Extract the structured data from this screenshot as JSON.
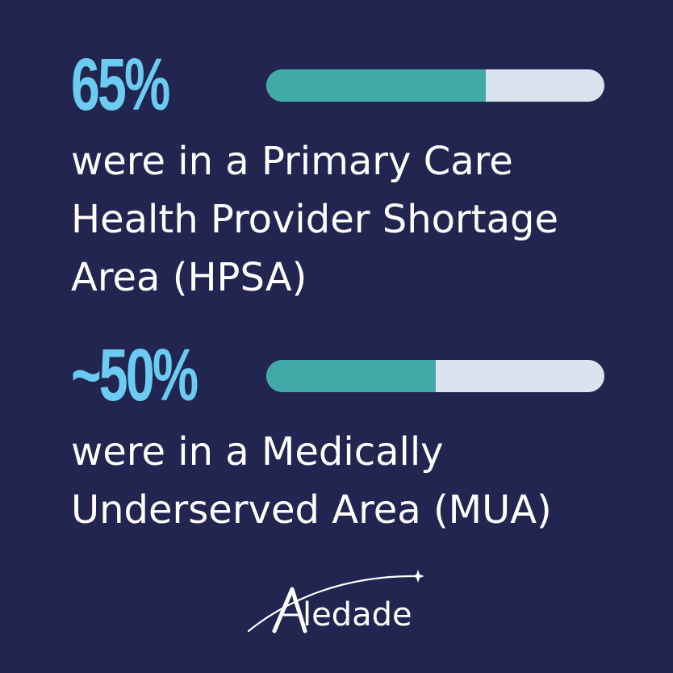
{
  "stats": [
    {
      "percent_label": "65%",
      "fraction": 0.65,
      "lines": [
        "were in a Primary Care",
        "Health Provider Shortage",
        "Area (HPSA)"
      ]
    },
    {
      "percent_label": "~50%",
      "fraction": 0.5,
      "lines": [
        "were in a Medically",
        "Underserved Area (MUA)"
      ]
    }
  ],
  "brand": {
    "name": "Aledade",
    "logo_letter": "A",
    "logo_rest": "ledade"
  },
  "colors": {
    "background": "#21254f",
    "percent_text": "#6ccbf0",
    "bar_fill": "#3faaa8",
    "bar_track": "#dbe3ee",
    "body_text": "#ffffff"
  },
  "icons": {
    "logo_swoosh": "star-swoosh-icon"
  }
}
